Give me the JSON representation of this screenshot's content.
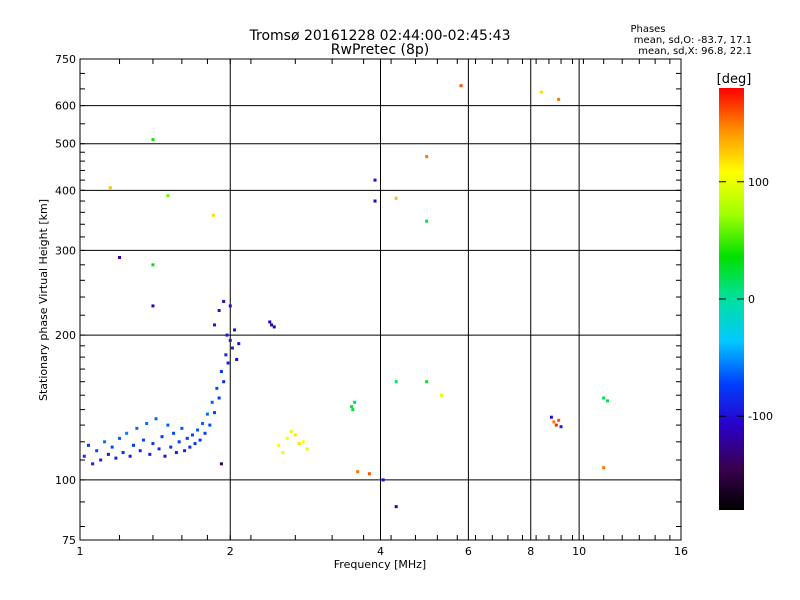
{
  "header": {
    "title_line1": "Tromsø 20161228 02:44:00-02:45:43",
    "title_line2": "RwPretec (8p)",
    "phases_label": "Phases",
    "phases_o": "mean, sd,O: -83.7, 17.1",
    "phases_x": "mean, sd,X:  96.8, 22.1"
  },
  "chart_data": {
    "type": "scatter",
    "xlabel": "Frequency [MHz]",
    "ylabel": "Stationary phase Virtual Height [km]",
    "x_scale": "log",
    "y_scale": "log",
    "xlim": [
      1,
      16
    ],
    "ylim": [
      75,
      750
    ],
    "x_ticks": [
      1,
      2,
      4,
      6,
      8,
      10,
      16
    ],
    "x_tick_labels": [
      "1",
      "2",
      "4",
      "6",
      "8",
      "10",
      "16"
    ],
    "y_ticks": [
      75,
      100,
      200,
      300,
      400,
      500,
      600,
      750
    ],
    "y_tick_labels": [
      "75",
      "100",
      "200",
      "300",
      "400",
      "500",
      "600",
      "750"
    ],
    "grid": true,
    "colorbar": {
      "label": "[deg]",
      "range": [
        -180,
        180
      ],
      "ticks": [
        100,
        0,
        -100
      ],
      "tick_labels": [
        "100",
        "0",
        "-100"
      ],
      "colors": [
        "#000000",
        "#3a0050",
        "#2a00c8",
        "#0040ff",
        "#00c8ff",
        "#00e0a0",
        "#00e000",
        "#a0ff00",
        "#ffff00",
        "#ff9000",
        "#ff0000"
      ]
    },
    "series": [
      {
        "values": [
          [
            1.02,
            112,
            -80
          ],
          [
            1.04,
            118,
            -75
          ],
          [
            1.06,
            108,
            -90
          ],
          [
            1.08,
            115,
            -70
          ],
          [
            1.1,
            110,
            -85
          ],
          [
            1.12,
            120,
            -60
          ],
          [
            1.14,
            113,
            -95
          ],
          [
            1.16,
            117,
            -70
          ],
          [
            1.18,
            111,
            -88
          ],
          [
            1.2,
            122,
            -65
          ],
          [
            1.22,
            114,
            -80
          ],
          [
            1.24,
            125,
            -55
          ],
          [
            1.26,
            112,
            -92
          ],
          [
            1.28,
            118,
            -75
          ],
          [
            1.3,
            128,
            -60
          ],
          [
            1.32,
            115,
            -85
          ],
          [
            1.34,
            121,
            -70
          ],
          [
            1.36,
            131,
            -58
          ],
          [
            1.38,
            113,
            -90
          ],
          [
            1.4,
            119,
            -78
          ],
          [
            1.42,
            134,
            -62
          ],
          [
            1.44,
            116,
            -86
          ],
          [
            1.46,
            123,
            -72
          ],
          [
            1.48,
            112,
            -95
          ],
          [
            1.5,
            130,
            -64
          ],
          [
            1.52,
            117,
            -82
          ],
          [
            1.54,
            125,
            -70
          ],
          [
            1.56,
            114,
            -90
          ],
          [
            1.58,
            120,
            -76
          ],
          [
            1.6,
            128,
            -66
          ],
          [
            1.62,
            115,
            -88
          ],
          [
            1.64,
            122,
            -74
          ],
          [
            1.66,
            117,
            -84
          ],
          [
            1.68,
            124,
            -70
          ],
          [
            1.7,
            119,
            -80
          ],
          [
            1.72,
            127,
            -66
          ],
          [
            1.74,
            121,
            -78
          ],
          [
            1.76,
            131,
            -62
          ],
          [
            1.78,
            125,
            -74
          ],
          [
            1.8,
            137,
            -60
          ],
          [
            1.82,
            130,
            -70
          ],
          [
            1.84,
            145,
            -64
          ],
          [
            1.86,
            138,
            -72
          ],
          [
            1.88,
            155,
            -68
          ],
          [
            1.9,
            148,
            -76
          ],
          [
            1.92,
            168,
            -80
          ],
          [
            1.94,
            160,
            -84
          ],
          [
            1.96,
            182,
            -86
          ],
          [
            1.98,
            175,
            -90
          ],
          [
            2.0,
            195,
            -92
          ],
          [
            2.02,
            188,
            -94
          ],
          [
            2.04,
            205,
            -96
          ],
          [
            2.06,
            178,
            -100
          ],
          [
            2.08,
            192,
            -98
          ],
          [
            1.86,
            210,
            -95
          ],
          [
            1.9,
            225,
            -98
          ],
          [
            1.94,
            235,
            -102
          ],
          [
            1.97,
            200,
            -96
          ],
          [
            2.0,
            230,
            -100
          ],
          [
            2.4,
            213,
            -110
          ],
          [
            2.42,
            210,
            -108
          ],
          [
            2.45,
            208,
            -112
          ],
          [
            1.92,
            108,
            -140
          ],
          [
            2.6,
            122,
            110
          ],
          [
            2.5,
            118,
            105
          ],
          [
            2.7,
            124,
            115
          ],
          [
            2.8,
            120,
            108
          ],
          [
            2.55,
            114,
            112
          ],
          [
            2.65,
            126,
            98
          ],
          [
            2.75,
            119,
            118
          ],
          [
            2.85,
            116,
            102
          ],
          [
            3.5,
            142,
            20
          ],
          [
            3.55,
            145,
            15
          ],
          [
            3.52,
            140,
            25
          ],
          [
            3.6,
            104,
            150
          ],
          [
            3.8,
            103,
            160
          ],
          [
            4.05,
            100,
            -100
          ],
          [
            4.3,
            88,
            -110
          ],
          [
            1.2,
            290,
            -120
          ],
          [
            1.4,
            510,
            40
          ],
          [
            1.15,
            405,
            130
          ],
          [
            1.5,
            390,
            60
          ],
          [
            1.85,
            355,
            120
          ],
          [
            1.4,
            280,
            30
          ],
          [
            1.4,
            230,
            -110
          ],
          [
            3.9,
            420,
            -100
          ],
          [
            3.9,
            380,
            -110
          ],
          [
            4.3,
            385,
            130
          ],
          [
            4.95,
            470,
            150
          ],
          [
            4.95,
            345,
            20
          ],
          [
            5.8,
            660,
            160
          ],
          [
            4.3,
            160,
            10
          ],
          [
            4.95,
            160,
            30
          ],
          [
            5.3,
            150,
            100
          ],
          [
            8.8,
            135,
            -100
          ],
          [
            8.9,
            132,
            150
          ],
          [
            9.0,
            130,
            170
          ],
          [
            9.1,
            133,
            160
          ],
          [
            9.2,
            129,
            -90
          ],
          [
            11.2,
            148,
            20
          ],
          [
            11.4,
            146,
            15
          ],
          [
            11.2,
            106,
            150
          ],
          [
            8.4,
            640,
            120
          ],
          [
            9.1,
            618,
            150
          ]
        ]
      }
    ]
  }
}
